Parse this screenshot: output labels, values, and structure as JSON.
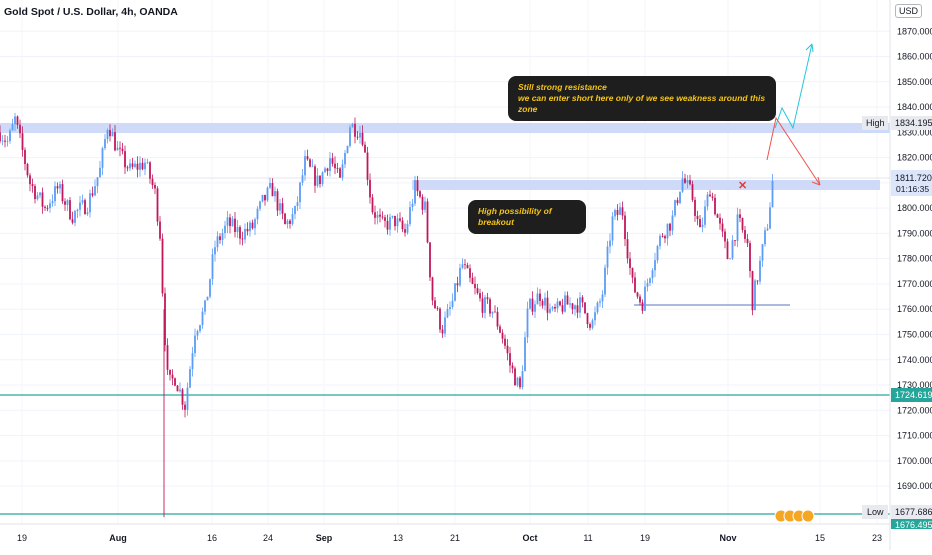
{
  "title": "Gold Spot / U.S. Dollar, 4h, OANDA",
  "currency": "USD",
  "annotations": {
    "resistance_note": [
      "Still strong resistance",
      "we can enter short here only of we see weakness around this zone"
    ],
    "breakout_note": "High possibility of breakout",
    "high_label": "High",
    "low_label": "Low",
    "countdown": "01:16:35"
  },
  "colors": {
    "up": "#5b9cf6",
    "down": "#c2185b",
    "zone": "#c5d3f6",
    "support_line": "#26a69a",
    "cyan_arrow": "#26c6da",
    "red_arrow": "#ef5350",
    "price_label": "#2962ff"
  },
  "chart_data": {
    "type": "candlestick",
    "title": "Gold Spot / U.S. Dollar, 4h, OANDA",
    "xlabel": "",
    "ylabel": "",
    "x_ticks": [
      "19",
      "Aug",
      "16",
      "24",
      "Sep",
      "13",
      "21",
      "Oct",
      "11",
      "19",
      "Nov",
      "15",
      "23"
    ],
    "y_ticks": [
      1690,
      1700,
      1710,
      1720,
      1730,
      1740,
      1750,
      1760,
      1770,
      1780,
      1790,
      1800,
      1810,
      1820,
      1830,
      1840,
      1850,
      1860,
      1870
    ],
    "ylim": [
      1675,
      1880
    ],
    "price_labels": {
      "high": "1834.195",
      "last": "1811.720",
      "support": "1724.619",
      "low": "1677.686",
      "bottom": "1676.495"
    },
    "path": [
      [
        0,
        1830
      ],
      [
        8,
        1826
      ],
      [
        15,
        1835
      ],
      [
        30,
        1810
      ],
      [
        45,
        1800
      ],
      [
        58,
        1808
      ],
      [
        72,
        1797
      ],
      [
        88,
        1802
      ],
      [
        100,
        1815
      ],
      [
        108,
        1834
      ],
      [
        118,
        1822
      ],
      [
        130,
        1815
      ],
      [
        145,
        1818
      ],
      [
        155,
        1806
      ],
      [
        160,
        1790
      ],
      [
        164,
        1755
      ],
      [
        168,
        1730
      ],
      [
        175,
        1733
      ],
      [
        185,
        1722
      ],
      [
        195,
        1752
      ],
      [
        205,
        1760
      ],
      [
        215,
        1785
      ],
      [
        228,
        1794
      ],
      [
        240,
        1790
      ],
      [
        252,
        1792
      ],
      [
        262,
        1802
      ],
      [
        272,
        1808
      ],
      [
        285,
        1793
      ],
      [
        295,
        1798
      ],
      [
        305,
        1818
      ],
      [
        318,
        1810
      ],
      [
        330,
        1820
      ],
      [
        340,
        1810
      ],
      [
        350,
        1833
      ],
      [
        362,
        1830
      ],
      [
        372,
        1800
      ],
      [
        382,
        1793
      ],
      [
        395,
        1795
      ],
      [
        405,
        1790
      ],
      [
        415,
        1808
      ],
      [
        425,
        1800
      ],
      [
        432,
        1765
      ],
      [
        442,
        1752
      ],
      [
        452,
        1762
      ],
      [
        462,
        1778
      ],
      [
        472,
        1769
      ],
      [
        482,
        1762
      ],
      [
        492,
        1760
      ],
      [
        502,
        1750
      ],
      [
        510,
        1738
      ],
      [
        520,
        1728
      ],
      [
        528,
        1760
      ],
      [
        540,
        1766
      ],
      [
        552,
        1758
      ],
      [
        565,
        1762
      ],
      [
        580,
        1762
      ],
      [
        592,
        1754
      ],
      [
        602,
        1765
      ],
      [
        612,
        1795
      ],
      [
        622,
        1800
      ],
      [
        632,
        1770
      ],
      [
        642,
        1762
      ],
      [
        652,
        1778
      ],
      [
        662,
        1790
      ],
      [
        672,
        1795
      ],
      [
        682,
        1812
      ],
      [
        692,
        1805
      ],
      [
        700,
        1790
      ],
      [
        710,
        1808
      ],
      [
        720,
        1792
      ],
      [
        728,
        1780
      ],
      [
        738,
        1795
      ],
      [
        748,
        1785
      ],
      [
        752,
        1762
      ],
      [
        760,
        1778
      ],
      [
        768,
        1795
      ],
      [
        773,
        1812
      ]
    ]
  }
}
